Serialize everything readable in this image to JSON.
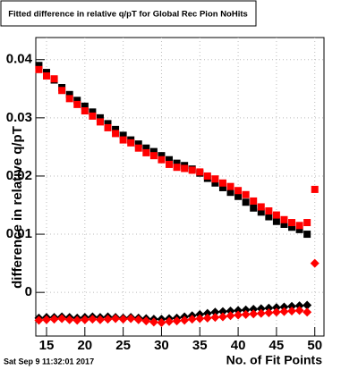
{
  "chart_data": {
    "type": "scatter",
    "title": "Fitted difference in relative q/pT for Global Rec Pion NoHits",
    "x_label": "No. of Fit Points",
    "y_label": "difference in relative q/pT",
    "timestamp": "Sat Sep  9 11:32:01 2017",
    "x": [
      14,
      15,
      16,
      17,
      18,
      19,
      20,
      21,
      22,
      23,
      24,
      25,
      26,
      27,
      28,
      29,
      30,
      31,
      32,
      33,
      34,
      35,
      36,
      37,
      38,
      39,
      40,
      41,
      42,
      43,
      44,
      45,
      46,
      47,
      48,
      49,
      50
    ],
    "series": [
      {
        "name": "black-squares",
        "color": "#000000",
        "marker": "square",
        "values": [
          0.039,
          0.0378,
          0.0365,
          0.0352,
          0.034,
          0.033,
          0.032,
          0.031,
          0.03,
          0.029,
          0.028,
          0.027,
          0.0262,
          0.0255,
          0.0248,
          0.0242,
          0.0235,
          0.0228,
          0.0222,
          0.0218,
          0.0212,
          0.0205,
          0.0196,
          0.0188,
          0.018,
          0.0172,
          0.0165,
          0.0155,
          0.0145,
          0.0138,
          0.013,
          0.0122,
          0.0117,
          0.0112,
          0.0108,
          0.01,
          null
        ]
      },
      {
        "name": "red-squares",
        "color": "#ff0000",
        "marker": "square",
        "values": [
          0.0383,
          0.0372,
          0.0367,
          0.0347,
          0.0333,
          0.0323,
          0.0312,
          0.0303,
          0.0293,
          0.0283,
          0.0273,
          0.0262,
          0.0257,
          0.0248,
          0.024,
          0.0235,
          0.0228,
          0.022,
          0.0215,
          0.0213,
          0.021,
          0.0207,
          0.02,
          0.0195,
          0.0188,
          0.0182,
          0.0175,
          0.0168,
          0.0157,
          0.0147,
          0.014,
          0.0133,
          0.0125,
          0.012,
          0.0115,
          0.012,
          0.0177
        ]
      },
      {
        "name": "black-diamonds",
        "color": "#000000",
        "marker": "diamond",
        "values": [
          -0.0044,
          -0.0043,
          -0.0043,
          -0.0042,
          -0.0043,
          -0.0044,
          -0.0043,
          -0.0042,
          -0.0043,
          -0.0042,
          -0.0043,
          -0.0044,
          -0.0043,
          -0.0044,
          -0.0045,
          -0.0046,
          -0.0046,
          -0.0045,
          -0.0044,
          -0.0042,
          -0.004,
          -0.0038,
          -0.0036,
          -0.0034,
          -0.0033,
          -0.0032,
          -0.0031,
          -0.003,
          -0.0029,
          -0.0028,
          -0.0027,
          -0.0026,
          -0.0025,
          -0.0024,
          -0.0023,
          -0.0022,
          null
        ]
      },
      {
        "name": "red-diamonds",
        "color": "#ff0000",
        "marker": "diamond",
        "values": [
          -0.0048,
          -0.0047,
          -0.0046,
          -0.0045,
          -0.0047,
          -0.0048,
          -0.0047,
          -0.0046,
          -0.0047,
          -0.0046,
          -0.0045,
          -0.0046,
          -0.0045,
          -0.0047,
          -0.0049,
          -0.0051,
          -0.0052,
          -0.005,
          -0.0049,
          -0.0048,
          -0.0046,
          -0.0045,
          -0.0044,
          -0.0043,
          -0.0042,
          -0.004,
          -0.0039,
          -0.0038,
          -0.0037,
          -0.0036,
          -0.0035,
          -0.0034,
          -0.0033,
          -0.0032,
          -0.0031,
          -0.0034,
          0.005
        ]
      }
    ],
    "xlim": [
      13.6,
      51.2
    ],
    "ylim": [
      -0.0075,
      0.0438
    ],
    "xticks": [
      15,
      20,
      25,
      30,
      35,
      40,
      45,
      50
    ],
    "yticks": [
      0,
      0.01,
      0.02,
      0.03,
      0.04
    ],
    "grid": true
  }
}
